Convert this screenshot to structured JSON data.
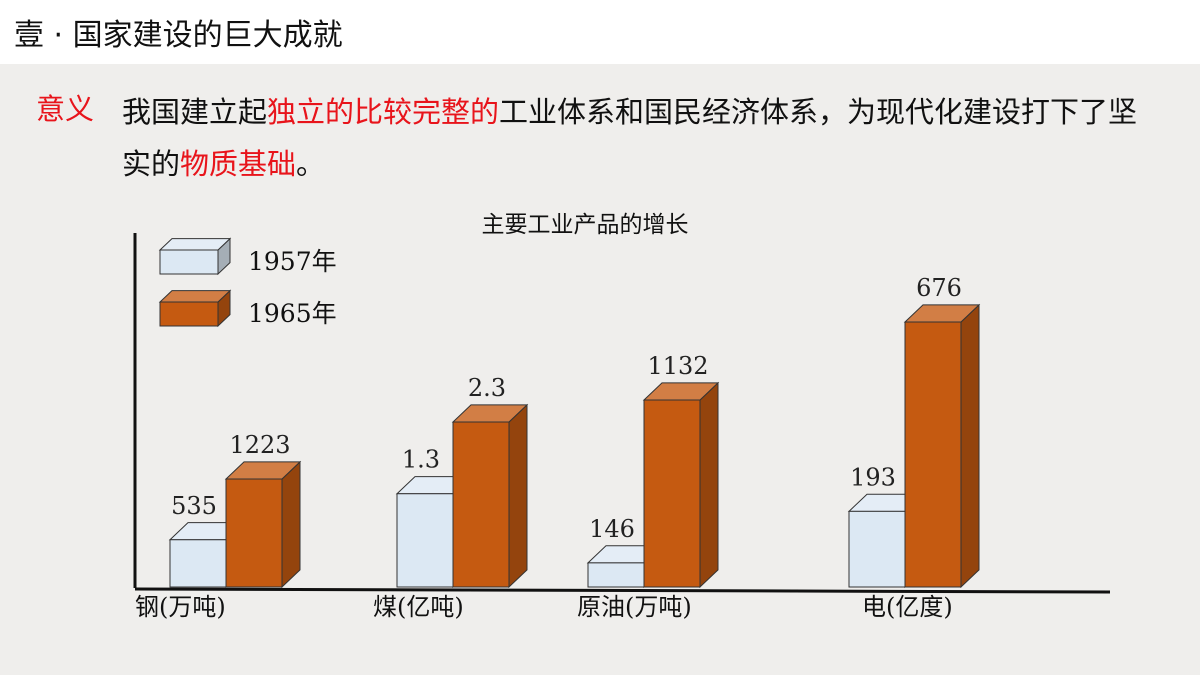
{
  "header": {
    "title": "壹 · 国家建设的巨大成就"
  },
  "meaning": {
    "label": "意义",
    "parts": [
      {
        "text": "我国建立起",
        "highlight": false
      },
      {
        "text": "独立的比较完整的",
        "highlight": true
      },
      {
        "text": "工业体系和国民经济体系，为现代化建设打下了坚实的",
        "highlight": false
      },
      {
        "text": "物质基础",
        "highlight": true
      },
      {
        "text": "。",
        "highlight": false
      }
    ]
  },
  "colors": {
    "highlight": "#e8141b",
    "series_1957": "#dce8f3",
    "series_1965": "#c55a11"
  },
  "chart_data": {
    "type": "bar",
    "title": "主要工业产品的增长",
    "categories": [
      "钢(万吨)",
      "煤(亿吨)",
      "原油(万吨)",
      "电(亿度)"
    ],
    "series": [
      {
        "name": "1957年",
        "values": [
          535,
          1.3,
          146,
          193
        ]
      },
      {
        "name": "1965年",
        "values": [
          1223,
          2.3,
          1132,
          676
        ]
      }
    ],
    "data_labels": [
      [
        "535",
        "1.3",
        "146",
        "193"
      ],
      [
        "1223",
        "2.3",
        "1132",
        "676"
      ]
    ],
    "legend": "top-left",
    "grid": false,
    "style": "3d"
  }
}
